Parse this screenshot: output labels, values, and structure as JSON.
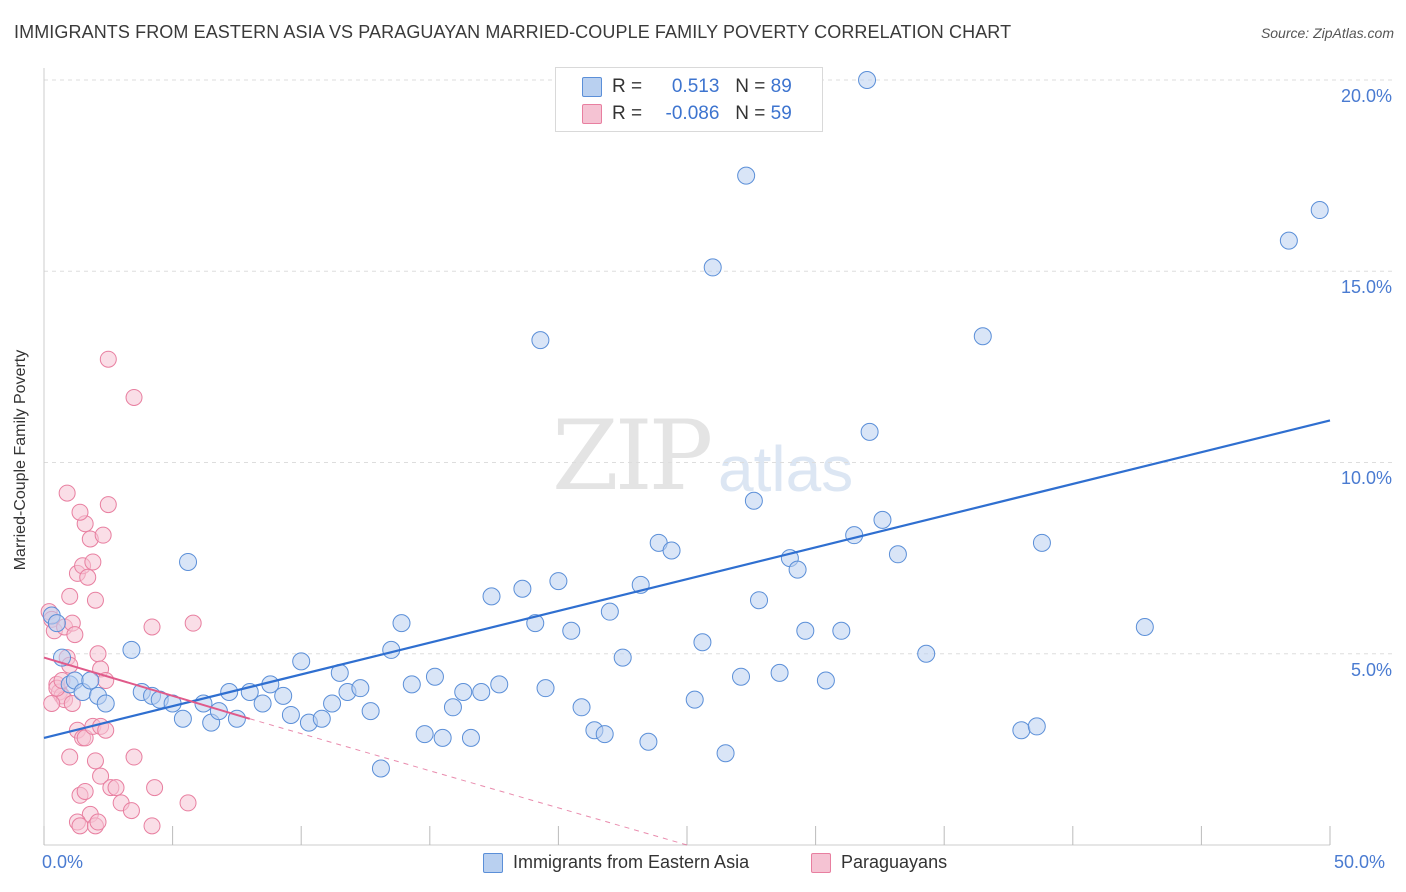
{
  "title": "IMMIGRANTS FROM EASTERN ASIA VS PARAGUAYAN MARRIED-COUPLE FAMILY POVERTY CORRELATION CHART",
  "source": "Source: ZipAtlas.com",
  "watermark": {
    "zip": "ZIP",
    "atlas": "atlas"
  },
  "colors": {
    "blue": "#5b8fd8",
    "blue_fill": "#b9d0f0",
    "pink": "#e87fa0",
    "pink_fill": "#f5c3d3",
    "grid": "#dddddd",
    "blue_line": "#2f6fd0",
    "pink_line": "#e05a8a"
  },
  "legend": {
    "rows": [
      {
        "r_label": "R =",
        "r_value": "0.513",
        "n_label": "N =",
        "n_value": "89"
      },
      {
        "r_label": "R =",
        "r_value": "-0.086",
        "n_label": "N =",
        "n_value": "59"
      }
    ]
  },
  "bottom_legend": {
    "series1": "Immigrants from Eastern Asia",
    "series2": "Paraguayans"
  },
  "chart_data": {
    "type": "scatter",
    "title": "IMMIGRANTS FROM EASTERN ASIA VS PARAGUAYAN MARRIED-COUPLE FAMILY POVERTY CORRELATION CHART",
    "xlabel": "",
    "ylabel": "Married-Couple Family Poverty",
    "xlim": [
      0,
      50
    ],
    "ylim": [
      0,
      20.5
    ],
    "x_tick_labels": [
      "0.0%",
      "50.0%"
    ],
    "y_ticks": [
      5,
      10,
      15,
      20
    ],
    "y_tick_labels": [
      "5.0%",
      "10.0%",
      "15.0%",
      "20.0%"
    ],
    "grid": true,
    "series": [
      {
        "name": "Immigrants from Eastern Asia",
        "trend": {
          "x": [
            0,
            50
          ],
          "y": [
            2.8,
            11.1
          ]
        },
        "points": [
          [
            0.3,
            6.0
          ],
          [
            0.5,
            5.8
          ],
          [
            0.7,
            4.9
          ],
          [
            1.0,
            4.2
          ],
          [
            1.2,
            4.3
          ],
          [
            1.5,
            4.0
          ],
          [
            1.8,
            4.3
          ],
          [
            2.1,
            3.9
          ],
          [
            2.4,
            3.7
          ],
          [
            3.4,
            5.1
          ],
          [
            3.8,
            4.0
          ],
          [
            4.2,
            3.9
          ],
          [
            4.5,
            3.8
          ],
          [
            5.0,
            3.7
          ],
          [
            5.4,
            3.3
          ],
          [
            5.6,
            7.4
          ],
          [
            6.2,
            3.7
          ],
          [
            6.5,
            3.2
          ],
          [
            6.8,
            3.5
          ],
          [
            7.2,
            4.0
          ],
          [
            7.5,
            3.3
          ],
          [
            8.0,
            4.0
          ],
          [
            8.5,
            3.7
          ],
          [
            8.8,
            4.2
          ],
          [
            9.3,
            3.9
          ],
          [
            9.6,
            3.4
          ],
          [
            10.0,
            4.8
          ],
          [
            10.3,
            3.2
          ],
          [
            10.8,
            3.3
          ],
          [
            11.2,
            3.7
          ],
          [
            11.5,
            4.5
          ],
          [
            11.8,
            4.0
          ],
          [
            12.3,
            4.1
          ],
          [
            12.7,
            3.5
          ],
          [
            13.1,
            2.0
          ],
          [
            13.5,
            5.1
          ],
          [
            13.9,
            5.8
          ],
          [
            14.3,
            4.2
          ],
          [
            14.8,
            2.9
          ],
          [
            15.2,
            4.4
          ],
          [
            15.5,
            2.8
          ],
          [
            15.9,
            3.6
          ],
          [
            16.3,
            4.0
          ],
          [
            16.6,
            2.8
          ],
          [
            17.0,
            4.0
          ],
          [
            17.4,
            6.5
          ],
          [
            17.7,
            4.2
          ],
          [
            18.6,
            6.7
          ],
          [
            19.1,
            5.8
          ],
          [
            19.3,
            13.2
          ],
          [
            19.5,
            4.1
          ],
          [
            20.0,
            6.9
          ],
          [
            20.5,
            5.6
          ],
          [
            20.9,
            3.6
          ],
          [
            21.4,
            3.0
          ],
          [
            21.8,
            2.9
          ],
          [
            22.0,
            6.1
          ],
          [
            22.5,
            4.9
          ],
          [
            23.2,
            6.8
          ],
          [
            23.5,
            2.7
          ],
          [
            23.9,
            7.9
          ],
          [
            24.4,
            7.7
          ],
          [
            25.3,
            3.8
          ],
          [
            25.6,
            5.3
          ],
          [
            26.0,
            15.1
          ],
          [
            26.5,
            2.4
          ],
          [
            27.1,
            4.4
          ],
          [
            27.3,
            17.5
          ],
          [
            27.6,
            9.0
          ],
          [
            27.8,
            6.4
          ],
          [
            28.6,
            4.5
          ],
          [
            29.0,
            7.5
          ],
          [
            29.3,
            7.2
          ],
          [
            29.6,
            5.6
          ],
          [
            30.4,
            4.3
          ],
          [
            31.0,
            5.6
          ],
          [
            31.5,
            8.1
          ],
          [
            32.0,
            20.0
          ],
          [
            32.1,
            10.8
          ],
          [
            32.6,
            8.5
          ],
          [
            33.2,
            7.6
          ],
          [
            34.3,
            5.0
          ],
          [
            36.5,
            13.3
          ],
          [
            38.0,
            3.0
          ],
          [
            38.6,
            3.1
          ],
          [
            38.8,
            7.9
          ],
          [
            42.8,
            5.7
          ],
          [
            48.4,
            15.8
          ],
          [
            49.6,
            16.6
          ]
        ]
      },
      {
        "name": "Paraguayans",
        "trend_solid": {
          "x": [
            0,
            8
          ],
          "y": [
            4.9,
            3.3
          ]
        },
        "trend_dashed": {
          "x": [
            8,
            25
          ],
          "y": [
            3.3,
            0
          ]
        },
        "points": [
          [
            0.2,
            6.1
          ],
          [
            0.3,
            5.9
          ],
          [
            0.4,
            5.6
          ],
          [
            0.5,
            4.2
          ],
          [
            0.6,
            4.0
          ],
          [
            0.7,
            3.9
          ],
          [
            0.8,
            3.8
          ],
          [
            0.3,
            3.7
          ],
          [
            0.5,
            4.1
          ],
          [
            0.9,
            4.9
          ],
          [
            1.0,
            4.7
          ],
          [
            0.7,
            4.3
          ],
          [
            0.8,
            5.7
          ],
          [
            1.1,
            5.8
          ],
          [
            1.2,
            5.5
          ],
          [
            1.0,
            6.5
          ],
          [
            1.3,
            7.1
          ],
          [
            1.5,
            7.3
          ],
          [
            1.6,
            8.4
          ],
          [
            1.4,
            8.7
          ],
          [
            0.9,
            9.2
          ],
          [
            1.8,
            8.0
          ],
          [
            1.7,
            7.0
          ],
          [
            1.9,
            7.4
          ],
          [
            2.1,
            5.0
          ],
          [
            2.0,
            6.4
          ],
          [
            2.3,
            8.1
          ],
          [
            2.5,
            8.9
          ],
          [
            2.2,
            4.6
          ],
          [
            2.4,
            4.3
          ],
          [
            1.1,
            3.7
          ],
          [
            1.3,
            3.0
          ],
          [
            1.5,
            2.8
          ],
          [
            1.6,
            2.8
          ],
          [
            1.9,
            3.1
          ],
          [
            2.2,
            3.1
          ],
          [
            2.4,
            3.0
          ],
          [
            1.0,
            2.3
          ],
          [
            1.4,
            1.3
          ],
          [
            1.6,
            1.4
          ],
          [
            1.8,
            0.8
          ],
          [
            2.0,
            2.2
          ],
          [
            2.2,
            1.8
          ],
          [
            2.6,
            1.5
          ],
          [
            2.8,
            1.5
          ],
          [
            3.0,
            1.1
          ],
          [
            1.3,
            0.6
          ],
          [
            1.4,
            0.5
          ],
          [
            2.0,
            0.5
          ],
          [
            2.1,
            0.6
          ],
          [
            3.5,
            2.3
          ],
          [
            3.4,
            0.9
          ],
          [
            4.3,
            1.5
          ],
          [
            4.2,
            0.5
          ],
          [
            5.8,
            5.8
          ],
          [
            5.6,
            1.1
          ],
          [
            2.5,
            12.7
          ],
          [
            3.5,
            11.7
          ],
          [
            4.2,
            5.7
          ]
        ]
      }
    ]
  }
}
